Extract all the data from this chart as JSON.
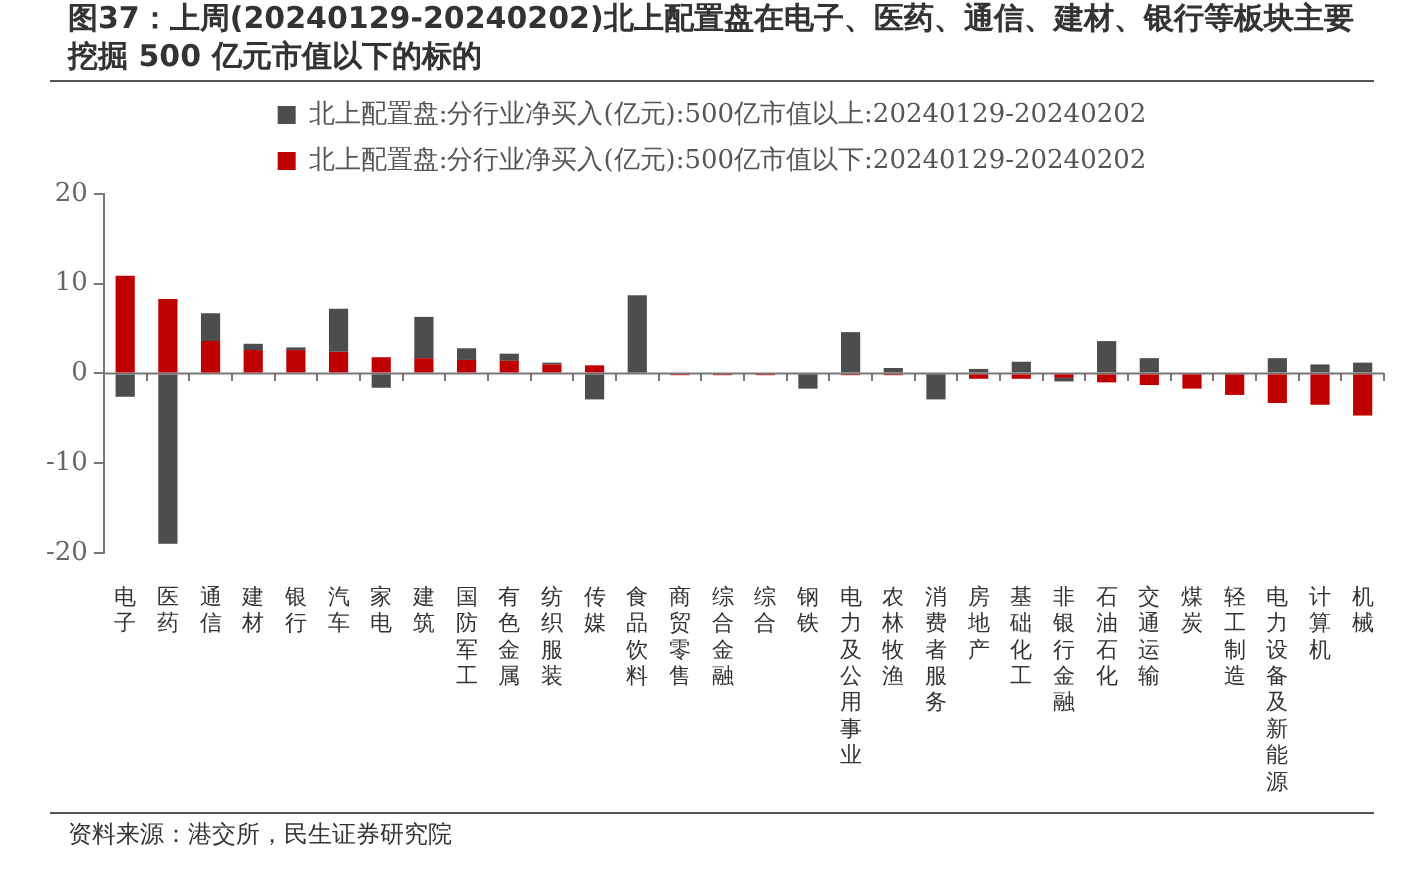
{
  "chart_data": {
    "type": "bar",
    "title": "图37：上周(20240129-20240202)北上配置盘在电子、医药、通信、建材、银行等板块主要挖掘 500 亿元市值以下的标的",
    "categories": [
      "电子",
      "医药",
      "通信",
      "建材",
      "银行",
      "汽车",
      "家电",
      "建筑",
      "国防军工",
      "有色金属",
      "纺织服装",
      "传媒",
      "食品饮料",
      "商贸零售",
      "综合金融",
      "综合",
      "钢铁",
      "电力及公用事业",
      "农林牧渔",
      "消费者服务",
      "房地产",
      "基础化工",
      "非银行金融",
      "石油石化",
      "交通运输",
      "煤炭",
      "轻工制造",
      "电力设备及新能源",
      "计算机",
      "机械"
    ],
    "series": [
      {
        "name": "北上配置盘:分行业净买入(亿元):500亿市值以下:20240129-20240202",
        "color": "#c00000",
        "values": [
          10.9,
          8.3,
          3.6,
          2.6,
          2.6,
          2.4,
          1.8,
          1.7,
          1.5,
          1.4,
          1.0,
          0.9,
          null,
          -0.2,
          -0.2,
          -0.2,
          0,
          -0.2,
          -0.2,
          null,
          -0.6,
          -0.6,
          -0.5,
          -1.0,
          -1.3,
          -1.7,
          -2.4,
          -3.3,
          -3.5,
          -4.7
        ]
      },
      {
        "name": "北上配置盘:分行业净买入(亿元):500亿市值以上:20240129-20240202",
        "color": "#4d4d4d",
        "values": [
          -2.6,
          -19.0,
          3.1,
          0.7,
          0.3,
          4.8,
          -1.6,
          4.6,
          1.3,
          0.8,
          0.2,
          -2.9,
          8.7,
          0,
          0,
          0,
          -1.7,
          4.6,
          0.6,
          -2.9,
          0.5,
          1.3,
          -0.4,
          3.6,
          1.7,
          0,
          0,
          1.7,
          1.0,
          1.2
        ]
      }
    ],
    "ref_lines": [
      {
        "axis": "y",
        "value": 0,
        "color": "#777777"
      }
    ],
    "stacked": true,
    "ylim": [
      -20,
      20
    ],
    "yticks": [
      -20,
      -10,
      0,
      10,
      20
    ],
    "grid": false,
    "legend": "top",
    "annotations": [
      "资料来源：港交所，民生证券研究院"
    ]
  }
}
